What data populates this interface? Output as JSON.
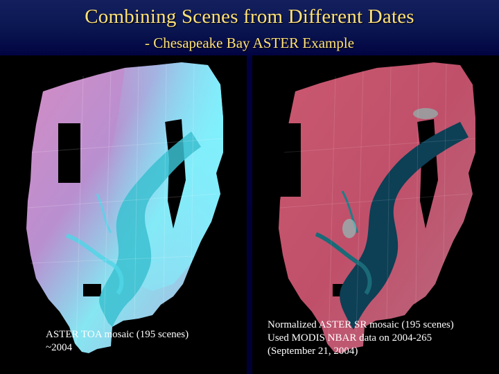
{
  "slide": {
    "title": "Combining Scenes from Different Dates",
    "subtitle": "- Chesapeake Bay ASTER Example"
  },
  "left_panel": {
    "image_description_icon": "aster-toa-mosaic-image",
    "caption_line1": "ASTER TOA mosaic (195 scenes)",
    "caption_line2": "~2004"
  },
  "right_panel": {
    "image_description_icon": "aster-sr-mosaic-image",
    "caption_line1": "Normalized ASTER SR mosaic (195 scenes)",
    "caption_line2": "Used MODIS NBAR data on 2004-265",
    "caption_line3": "(September 21, 2004)"
  },
  "colors": {
    "background": "#00003a",
    "title": "#ffe27a",
    "caption": "#ffffff",
    "toa_land": "#c98fc0",
    "toa_haze": "#7fe9f0",
    "sr_land": "#c2556c",
    "water": "#0d3f55"
  }
}
